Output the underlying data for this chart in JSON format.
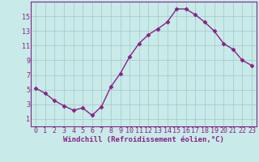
{
  "x": [
    0,
    1,
    2,
    3,
    4,
    5,
    6,
    7,
    8,
    9,
    10,
    11,
    12,
    13,
    14,
    15,
    16,
    17,
    18,
    19,
    20,
    21,
    22,
    23
  ],
  "y": [
    5.2,
    4.5,
    3.5,
    2.8,
    2.2,
    2.5,
    1.5,
    2.7,
    5.4,
    7.2,
    9.5,
    11.3,
    12.5,
    13.3,
    14.2,
    16.0,
    16.0,
    15.2,
    14.2,
    13.0,
    11.3,
    10.5,
    9.0,
    8.3
  ],
  "line_color": "#882288",
  "marker": "D",
  "marker_size": 2.5,
  "bg_color": "#C8EAE8",
  "grid_color": "#A0C8C8",
  "axis_color": "#882288",
  "spine_color": "#882288",
  "xlabel": "Windchill (Refroidissement éolien,°C)",
  "xlabel_fontsize": 6.5,
  "ylim": [
    0,
    17
  ],
  "xlim": [
    -0.5,
    23.5
  ],
  "yticks": [
    1,
    3,
    5,
    7,
    9,
    11,
    13,
    15
  ],
  "xticks": [
    0,
    1,
    2,
    3,
    4,
    5,
    6,
    7,
    8,
    9,
    10,
    11,
    12,
    13,
    14,
    15,
    16,
    17,
    18,
    19,
    20,
    21,
    22,
    23
  ],
  "tick_fontsize": 6.0,
  "linewidth": 1.0
}
